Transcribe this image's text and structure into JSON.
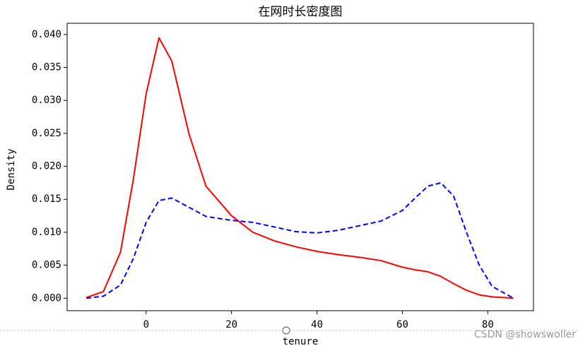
{
  "chart_data": {
    "type": "line",
    "title": "在网时长密度图",
    "x_label": "tenure",
    "y_label": "Density",
    "x": [
      -14,
      -10,
      -6,
      -3,
      0,
      3,
      6,
      10,
      14,
      20,
      25,
      30,
      35,
      40,
      45,
      50,
      55,
      60,
      63,
      66,
      69,
      72,
      75,
      78,
      81,
      86
    ],
    "series": [
      {
        "color": "#ff0000",
        "linestyle": "solid",
        "values": [
          0.0001,
          0.001,
          0.007,
          0.018,
          0.031,
          0.0395,
          0.036,
          0.025,
          0.017,
          0.0125,
          0.01,
          0.0087,
          0.0078,
          0.0071,
          0.0066,
          0.0062,
          0.0057,
          0.0047,
          0.0043,
          0.004,
          0.0033,
          0.0022,
          0.0012,
          0.0005,
          0.0002,
          0.0
        ]
      },
      {
        "color": "#0000ff",
        "linestyle": "dashed",
        "values": [
          0.0,
          0.0003,
          0.002,
          0.006,
          0.0115,
          0.0148,
          0.0152,
          0.0138,
          0.0124,
          0.0118,
          0.0115,
          0.0108,
          0.0101,
          0.0099,
          0.0103,
          0.011,
          0.0117,
          0.0133,
          0.0152,
          0.017,
          0.0175,
          0.0155,
          0.01,
          0.005,
          0.0018,
          0.0
        ]
      }
    ],
    "xlim": [
      -18.5,
      90.7
    ],
    "ylim": [
      -0.0019,
      0.0417
    ],
    "xticks": [
      0,
      20,
      40,
      60,
      80
    ],
    "yticks": [
      {
        "value": 0,
        "label": "0.000"
      },
      {
        "value": 0.005,
        "label": "0.005"
      },
      {
        "value": 0.01,
        "label": "0.010"
      },
      {
        "value": 0.015,
        "label": "0.015"
      },
      {
        "value": 0.02,
        "label": "0.020"
      },
      {
        "value": 0.025,
        "label": "0.025"
      },
      {
        "value": 0.03,
        "label": "0.030"
      },
      {
        "value": 0.035,
        "label": "0.035"
      },
      {
        "value": 0.04,
        "label": "0.040"
      }
    ],
    "watermark": "CSDN @showswoller"
  }
}
